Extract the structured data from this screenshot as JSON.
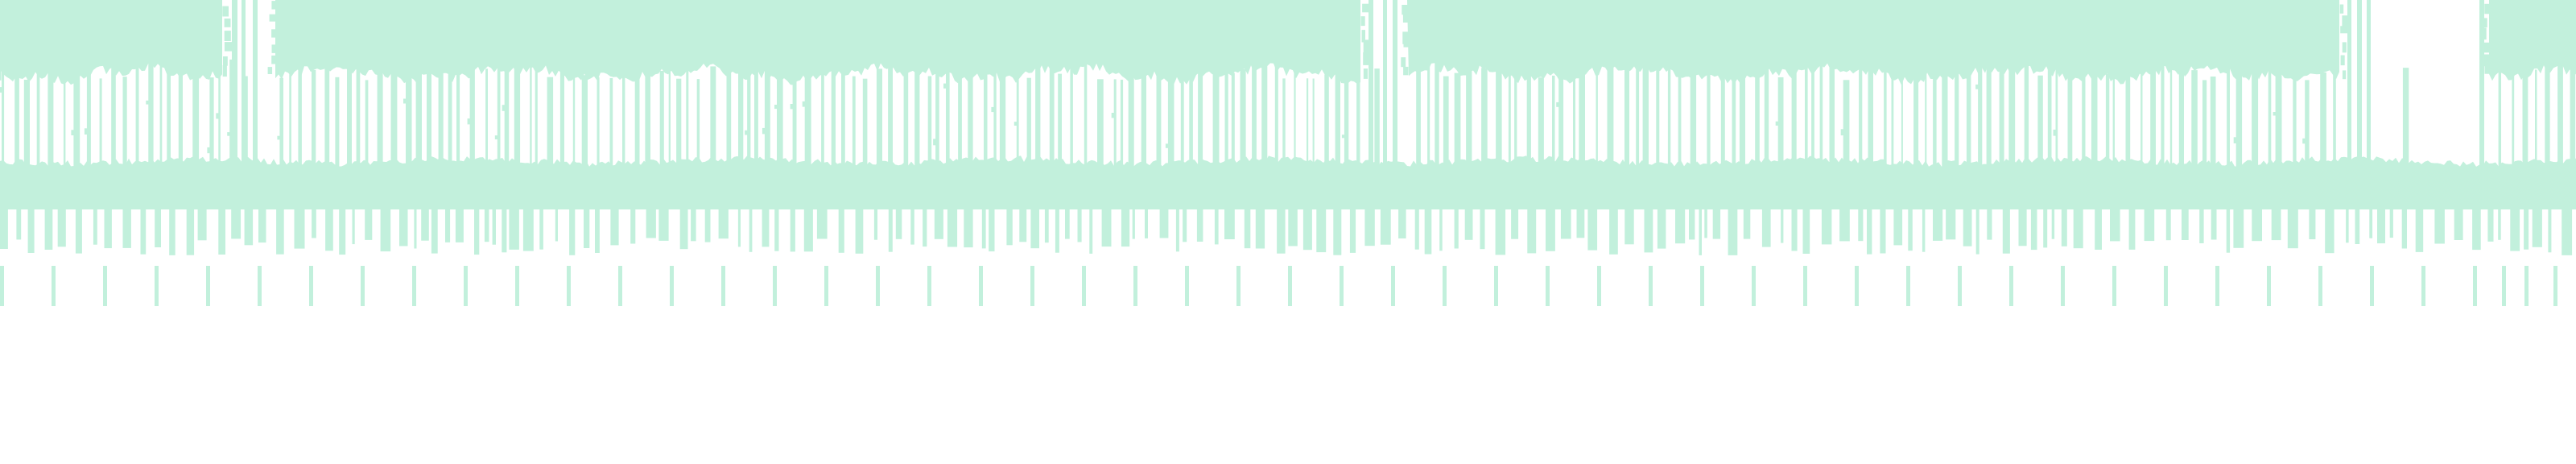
{
  "colors": {
    "background": "#ffffff",
    "tint": "#c2f0dc"
  },
  "icon_names": [
    "forest-canopy-silhouette-icon",
    "tree-trunks-icon",
    "forest-floor-band-icon",
    "tick-marks-icon"
  ]
}
